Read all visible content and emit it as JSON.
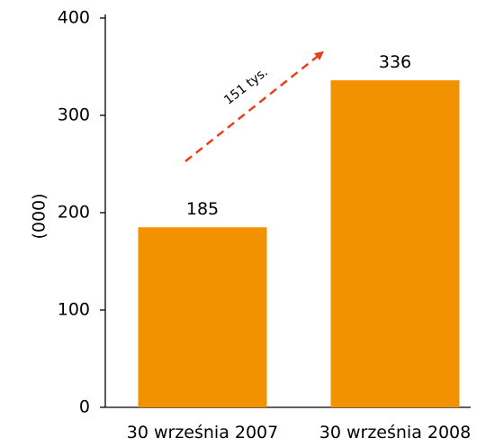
{
  "chart_data": {
    "type": "bar",
    "title": "",
    "xlabel": "",
    "ylabel": "(000)",
    "ylim": [
      0,
      400
    ],
    "yticks": [
      0,
      100,
      200,
      300,
      400
    ],
    "grid": false,
    "legend": "none",
    "categories": [
      "30 września 2007",
      "30 września 2008"
    ],
    "values": [
      185,
      336
    ],
    "data_labels": [
      "185",
      "336"
    ],
    "bar_color": "#f39200",
    "annotation": {
      "text": "151 tys.",
      "arrow_color": "#e8401c",
      "style": "dashed-arrow"
    }
  }
}
